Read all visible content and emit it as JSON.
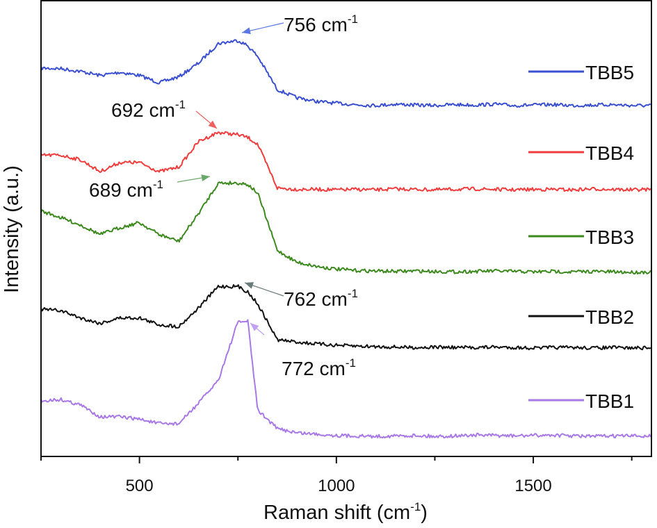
{
  "chart_data": {
    "type": "line",
    "title": "",
    "xlabel": "Raman shift (cm",
    "xlabel_exp": "-1",
    "xlabel_close": ")",
    "ylabel": "Intensity (a.u.)",
    "xlim": [
      250,
      1800
    ],
    "ylim": [
      0,
      100
    ],
    "y_ticks_labeled": false,
    "x_ticks": [
      500,
      1000,
      1500
    ],
    "x_tick_labels": [
      "500",
      "1000",
      "1500"
    ],
    "x_minor_ticks": [
      250,
      750,
      1250,
      1750
    ],
    "grid": false,
    "legend_position": "right",
    "x": [
      250,
      300,
      350,
      400,
      450,
      500,
      550,
      600,
      650,
      700,
      750,
      775,
      800,
      850,
      900,
      950,
      1000,
      1050,
      1100,
      1150,
      1200,
      1250,
      1300,
      1350,
      1400,
      1450,
      1500,
      1550,
      1600,
      1650,
      1700,
      1750,
      1800
    ],
    "series": [
      {
        "name": "TBB5",
        "color": "#3a4fd0",
        "values": [
          85.2,
          85.1,
          84.5,
          83.6,
          84.3,
          83.6,
          82.0,
          83.3,
          86.3,
          90.6,
          91.3,
          90.1,
          87.8,
          80.5,
          78.7,
          77.9,
          77.5,
          77.2,
          77.0,
          77.3,
          77.1,
          77.0,
          77.2,
          77.1,
          77.3,
          77.0,
          77.1,
          77.2,
          77.0,
          77.1,
          77.2,
          77.0,
          77.0
        ]
      },
      {
        "name": "TBB4",
        "color": "#f03c3c",
        "values": [
          66.1,
          66.1,
          65.1,
          62.5,
          64.5,
          64.5,
          62.5,
          63.5,
          69.1,
          71.1,
          70.6,
          70.0,
          68.5,
          58.9,
          58.6,
          58.6,
          58.5,
          58.6,
          58.5,
          58.7,
          58.6,
          58.5,
          58.6,
          58.7,
          58.6,
          58.5,
          58.6,
          58.6,
          58.5,
          58.7,
          58.6,
          58.5,
          58.6
        ]
      },
      {
        "name": "TBB3",
        "color": "#3c8a1e",
        "values": [
          53.9,
          52.4,
          50.8,
          48.7,
          50.2,
          51.3,
          48.7,
          47.2,
          53.3,
          60.0,
          60.0,
          59.7,
          57.8,
          45.2,
          42.6,
          41.7,
          41.1,
          40.8,
          40.7,
          40.6,
          40.7,
          40.6,
          40.5,
          40.6,
          40.7,
          40.6,
          40.5,
          40.6,
          40.5,
          40.6,
          40.5,
          40.4,
          40.5
        ]
      },
      {
        "name": "TBB2",
        "color": "#111111",
        "values": [
          32.3,
          32.0,
          30.4,
          29.2,
          30.4,
          30.4,
          28.9,
          28.5,
          32.6,
          37.3,
          37.3,
          36.1,
          33.5,
          25.6,
          25.1,
          24.7,
          24.4,
          24.2,
          24.1,
          24.0,
          23.9,
          24.0,
          23.9,
          23.9,
          24.0,
          23.9,
          23.8,
          23.9,
          23.9,
          23.8,
          23.9,
          23.8,
          23.8
        ]
      },
      {
        "name": "TBB1",
        "color": "#a878e6",
        "values": [
          12.2,
          12.5,
          11.3,
          8.7,
          8.7,
          8.2,
          7.2,
          7.2,
          11.7,
          16.7,
          29.5,
          29.7,
          10.2,
          6.1,
          5.2,
          4.9,
          4.6,
          4.5,
          4.4,
          4.5,
          4.6,
          4.4,
          4.5,
          4.7,
          4.6,
          4.5,
          4.6,
          4.7,
          4.5,
          4.4,
          4.5,
          4.5,
          4.5
        ]
      }
    ],
    "annotations": [
      {
        "series": "TBB5",
        "value": "756",
        "unit": "cm",
        "exp": "-1",
        "color": "#5a78e0"
      },
      {
        "series": "TBB4",
        "value": "692",
        "unit": "cm",
        "exp": "-1",
        "color": "#f06060"
      },
      {
        "series": "TBB3",
        "value": "689",
        "unit": "cm",
        "exp": "-1",
        "color": "#6aa86a"
      },
      {
        "series": "TBB2",
        "value": "762",
        "unit": "cm",
        "exp": "-1",
        "color": "#6a7a7a"
      },
      {
        "series": "TBB1",
        "value": "772",
        "unit": "cm",
        "exp": "-1",
        "color": "#c0a0f0"
      }
    ]
  }
}
